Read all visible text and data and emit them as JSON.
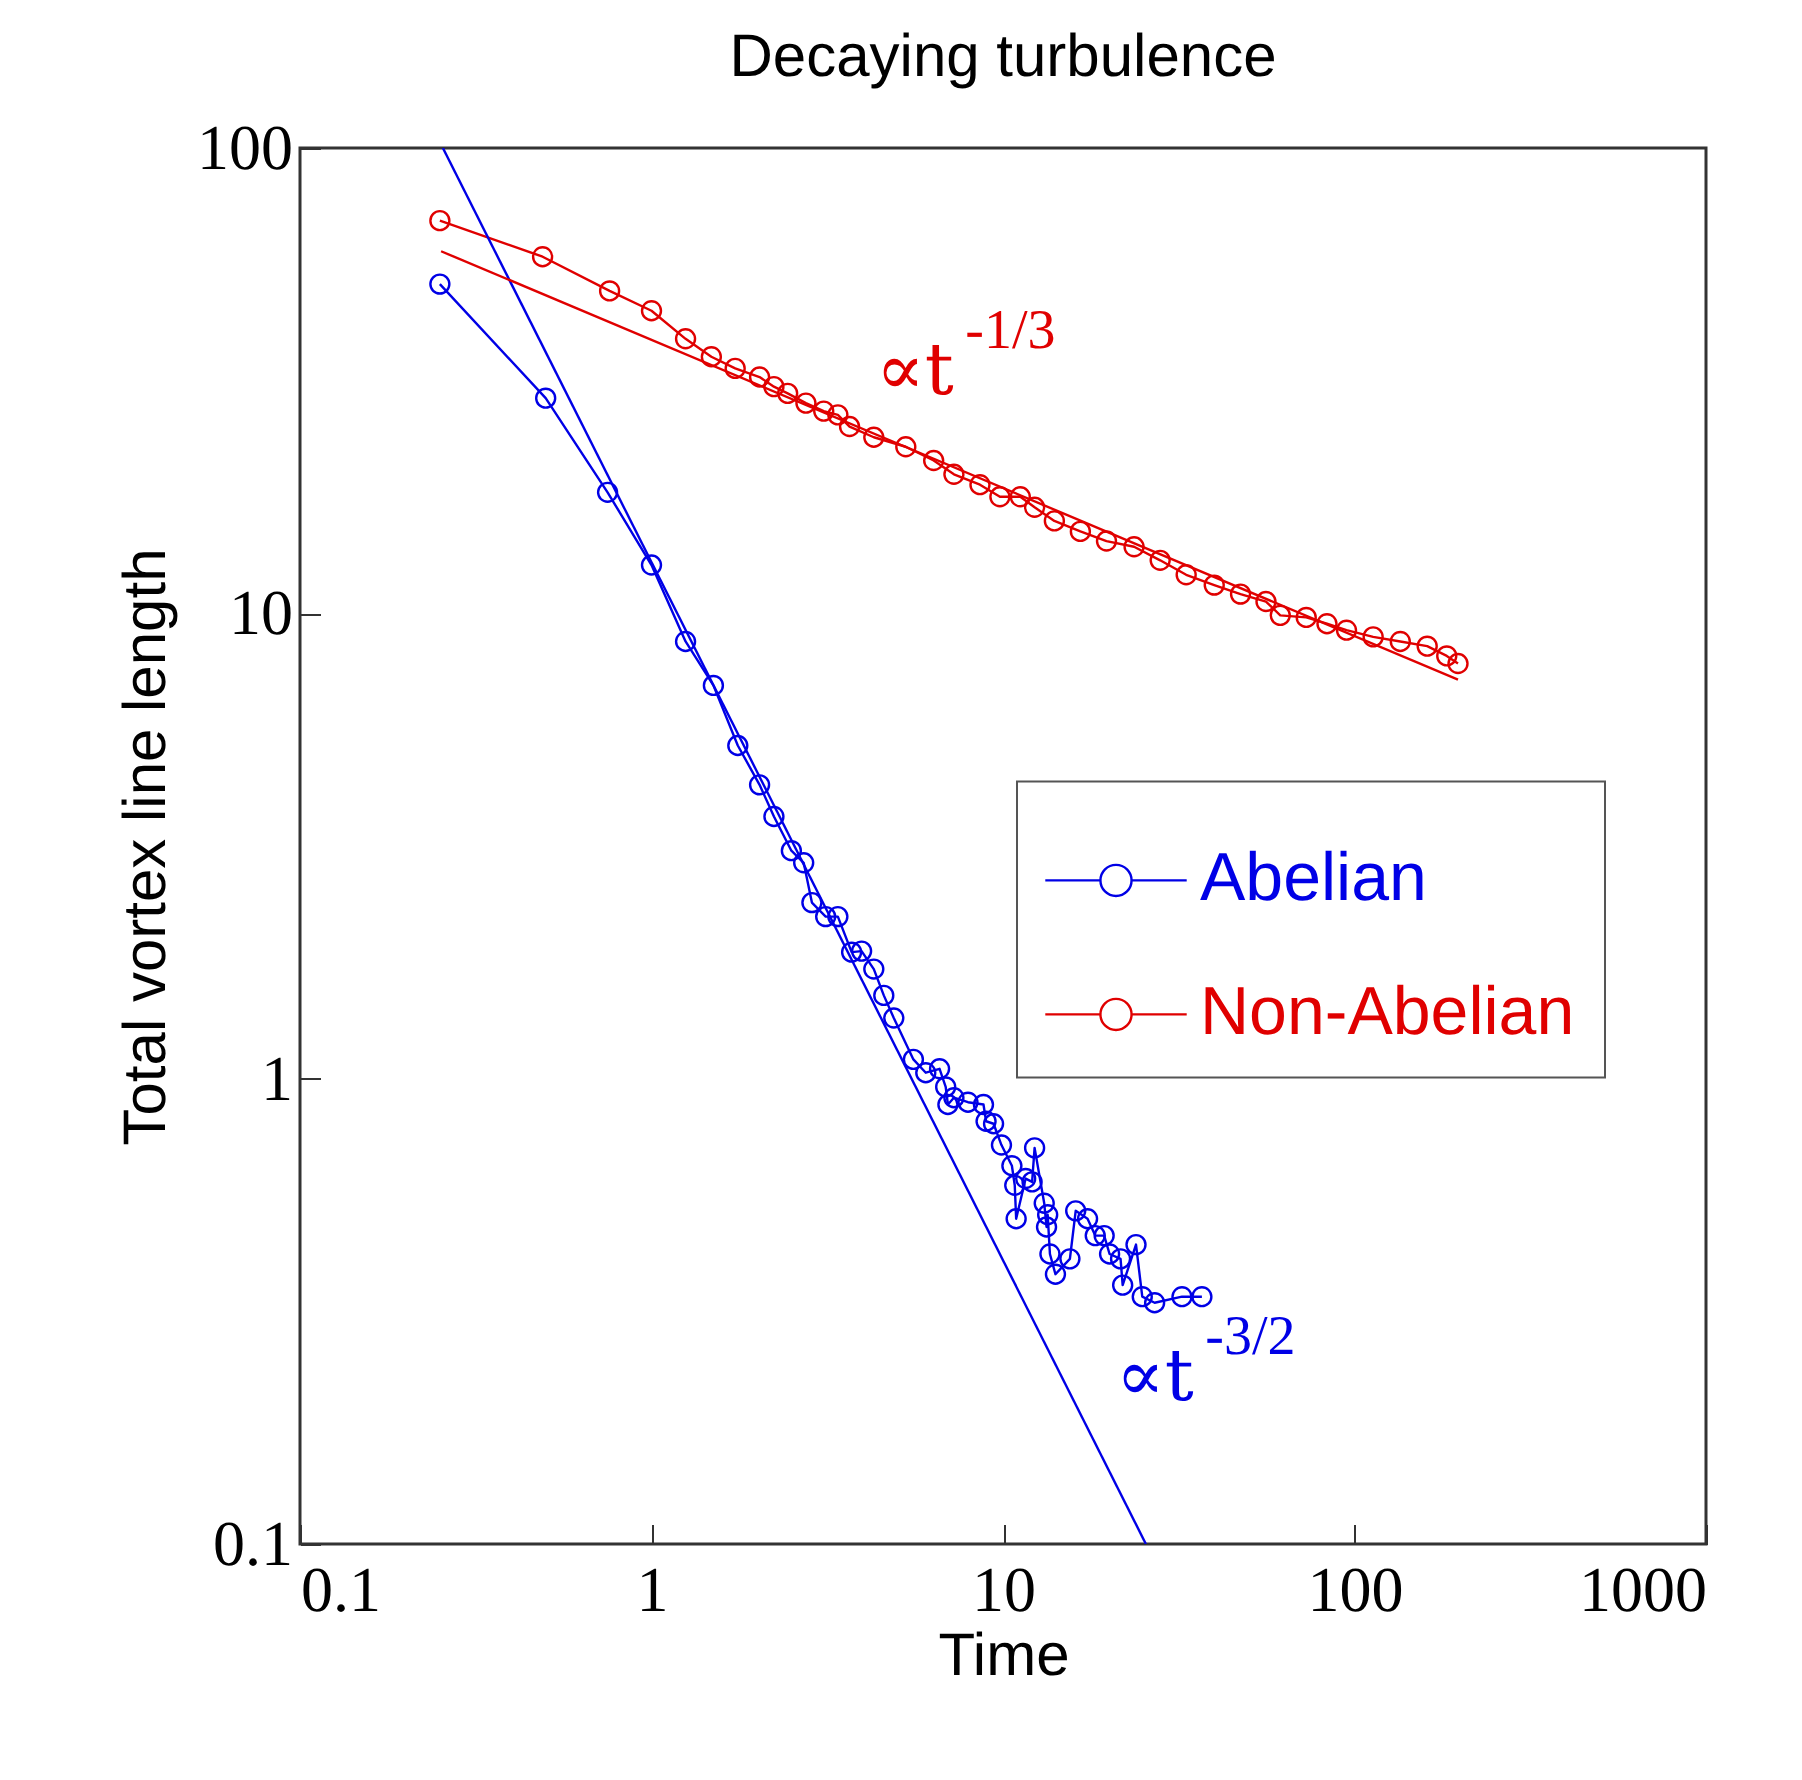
{
  "chart_data": {
    "type": "line",
    "title": "Decaying turbulence",
    "xlabel": "Time",
    "ylabel": "Total vortex line length",
    "log": "xy",
    "xlim": [
      0.1,
      1000
    ],
    "ylim": [
      0.1,
      100
    ],
    "xticks": [
      0.1,
      1,
      10,
      100,
      1000
    ],
    "yticks": [
      0.1,
      1,
      10,
      100
    ],
    "grid": false,
    "legend": "right",
    "marker": "circle",
    "series": [
      {
        "name": "Abelian",
        "color": "#0000e6",
        "x": [
          0.25,
          0.5,
          0.75,
          1.0,
          1.25,
          1.5,
          1.76,
          2.03,
          2.23,
          2.5,
          2.71,
          2.86,
          3.13,
          3.39,
          3.71,
          3.96,
          4.29,
          4.58,
          4.89,
          5.56,
          6.03,
          6.6,
          6.87,
          6.97,
          7.25,
          7.95,
          8.8,
          8.95,
          9.4,
          9.9,
          10.6,
          10.8,
          10.9,
          11.6,
          12.1,
          12.3,
          13.1,
          13.3,
          13.4,
          13.6,
          14.1,
          15.5,
          16.1,
          17.4,
          18.3,
          19.4,
          20.1,
          21.6,
          21.9,
          23.9,
          24.9,
          27.0,
          32.3,
          36.8
        ],
        "values": [
          51,
          29,
          18.2,
          12.7,
          8.7,
          7.0,
          5.2,
          4.28,
          3.66,
          3.09,
          2.91,
          2.39,
          2.23,
          2.23,
          1.87,
          1.88,
          1.72,
          1.51,
          1.35,
          1.1,
          1.03,
          1.05,
          0.96,
          0.88,
          0.91,
          0.89,
          0.88,
          0.81,
          0.8,
          0.72,
          0.65,
          0.59,
          0.5,
          0.61,
          0.6,
          0.71,
          0.54,
          0.48,
          0.51,
          0.42,
          0.38,
          0.41,
          0.52,
          0.5,
          0.46,
          0.46,
          0.42,
          0.41,
          0.36,
          0.44,
          0.34,
          0.33,
          0.34,
          0.34
        ]
      },
      {
        "name": "Non-Abelian",
        "color": "#e00000",
        "x": [
          0.25,
          0.49,
          0.76,
          1.0,
          1.25,
          1.48,
          1.73,
          2.03,
          2.23,
          2.44,
          2.75,
          3.09,
          3.39,
          3.66,
          4.29,
          5.29,
          6.35,
          7.25,
          8.6,
          9.8,
          11.2,
          12.3,
          14.0,
          16.6,
          19.7,
          23.6,
          28.0,
          33.2,
          39.9,
          47.4,
          56.0,
          61.5,
          72.9,
          83.5,
          94.9,
          113,
          135,
          161,
          183,
          197
        ],
        "values": [
          69.8,
          58.4,
          49.3,
          44.7,
          38.9,
          35.6,
          33.6,
          32.2,
          30.7,
          29.7,
          28.3,
          27.2,
          26.7,
          25.2,
          23.9,
          22.8,
          21.3,
          19.9,
          18.9,
          17.8,
          17.8,
          16.9,
          15.8,
          15.0,
          14.3,
          13.9,
          13.0,
          12.1,
          11.5,
          11.0,
          10.6,
          9.9,
          9.8,
          9.5,
          9.2,
          8.9,
          8.7,
          8.5,
          8.1,
          7.8
        ]
      },
      {
        "type": "line",
        "marker": "none",
        "color": "#0000e6",
        "x": [
          0.255,
          25.5
        ],
        "values": [
          100,
          0.1
        ]
      },
      {
        "type": "line",
        "marker": "none",
        "color": "#e00000",
        "x": [
          0.252,
          197
        ],
        "values": [
          60,
          7.2
        ]
      }
    ],
    "annotations": [
      "∝t$^{-3/2}$",
      "∝t$^{-1/3}$"
    ]
  }
}
